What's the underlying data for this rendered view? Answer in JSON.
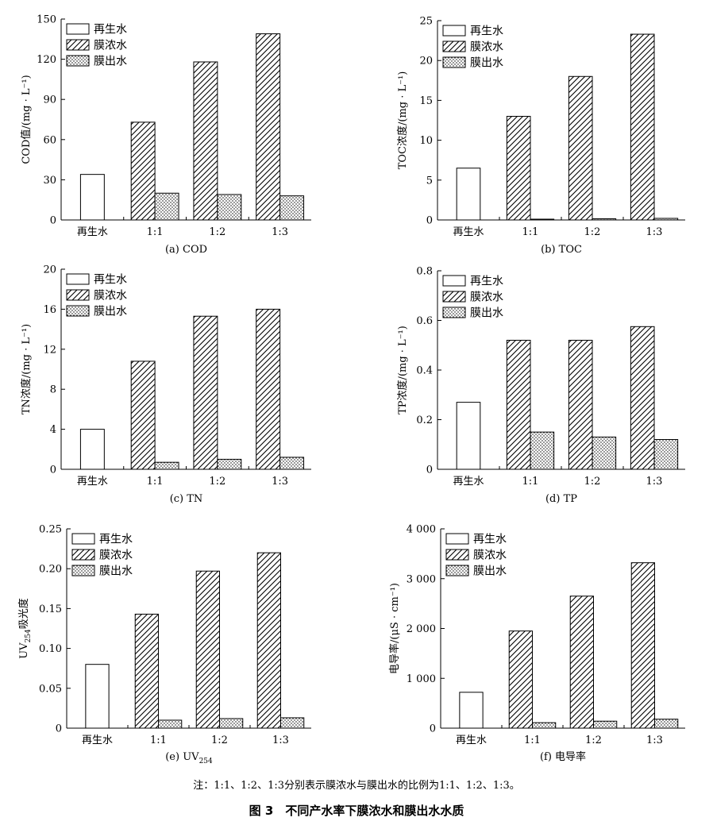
{
  "figure": {
    "note": "注：1:1、1:2、1:3分别表示膜浓水与膜出水的比例为1:1、1:2、1:3。",
    "caption": "图 3　不同产水率下膜浓水和膜出水水质"
  },
  "legend": [
    "再生水",
    "膜浓水",
    "膜出水"
  ],
  "colors": {
    "stroke": "#000000",
    "bar_fill": "#ffffff",
    "background": "#ffffff"
  },
  "chart_data": [
    {
      "id": "a",
      "type": "bar",
      "subtitle": "(a) COD",
      "ylabel": "COD值/(mg · L⁻¹)",
      "ylim": [
        0,
        150
      ],
      "yticks": [
        0,
        30,
        60,
        90,
        120,
        150
      ],
      "ytick_labels": [
        "0",
        "30",
        "60",
        "90",
        "120",
        "150"
      ],
      "categories": [
        "再生水",
        "1:1",
        "1:2",
        "1:3"
      ],
      "series": [
        {
          "name": "再生水",
          "values": [
            34,
            null,
            null,
            null
          ]
        },
        {
          "name": "膜浓水",
          "values": [
            null,
            73,
            118,
            139
          ]
        },
        {
          "name": "膜出水",
          "values": [
            null,
            20,
            19,
            18
          ]
        }
      ]
    },
    {
      "id": "b",
      "type": "bar",
      "subtitle": "(b) TOC",
      "ylabel": "TOC浓度/(mg · L⁻¹)",
      "ylim": [
        0,
        25
      ],
      "yticks": [
        0,
        5,
        10,
        15,
        20,
        25
      ],
      "ytick_labels": [
        "0",
        "5",
        "10",
        "15",
        "20",
        "25"
      ],
      "categories": [
        "再生水",
        "1:1",
        "1:2",
        "1:3"
      ],
      "series": [
        {
          "name": "再生水",
          "values": [
            6.5,
            null,
            null,
            null
          ]
        },
        {
          "name": "膜浓水",
          "values": [
            null,
            13,
            18,
            23.3
          ]
        },
        {
          "name": "膜出水",
          "values": [
            null,
            0.1,
            0.15,
            0.2
          ]
        }
      ]
    },
    {
      "id": "c",
      "type": "bar",
      "subtitle": "(c) TN",
      "ylabel": "TN浓度/(mg · L⁻¹)",
      "ylim": [
        0,
        20
      ],
      "yticks": [
        0,
        4,
        8,
        12,
        16,
        20
      ],
      "ytick_labels": [
        "0",
        "4",
        "8",
        "12",
        "16",
        "20"
      ],
      "categories": [
        "再生水",
        "1:1",
        "1:2",
        "1:3"
      ],
      "series": [
        {
          "name": "再生水",
          "values": [
            4.0,
            null,
            null,
            null
          ]
        },
        {
          "name": "膜浓水",
          "values": [
            null,
            10.8,
            15.3,
            16.0
          ]
        },
        {
          "name": "膜出水",
          "values": [
            null,
            0.7,
            1.0,
            1.2
          ]
        }
      ]
    },
    {
      "id": "d",
      "type": "bar",
      "subtitle": "(d) TP",
      "ylabel": "TP浓度/(mg · L⁻¹)",
      "ylim": [
        0,
        0.8
      ],
      "yticks": [
        0,
        0.2,
        0.4,
        0.6,
        0.8
      ],
      "ytick_labels": [
        "0",
        "0.2",
        "0.4",
        "0.6",
        "0.8"
      ],
      "categories": [
        "再生水",
        "1:1",
        "1:2",
        "1:3"
      ],
      "series": [
        {
          "name": "再生水",
          "values": [
            0.27,
            null,
            null,
            null
          ]
        },
        {
          "name": "膜浓水",
          "values": [
            null,
            0.52,
            0.52,
            0.575
          ]
        },
        {
          "name": "膜出水",
          "values": [
            null,
            0.15,
            0.13,
            0.12
          ]
        }
      ]
    },
    {
      "id": "e",
      "type": "bar",
      "subtitle": "(e) UV254",
      "subtitle_main": "(e) UV",
      "subtitle_sub": "254",
      "ylabel": "UV254吸光度",
      "ylabel_main": "UV",
      "ylabel_sub": "254",
      "ylabel_rest": "吸光度",
      "ylim": [
        0,
        0.25
      ],
      "yticks": [
        0,
        0.05,
        0.1,
        0.15,
        0.2,
        0.25
      ],
      "ytick_labels": [
        "0",
        "0.05",
        "0.10",
        "0.15",
        "0.20",
        "0.25"
      ],
      "categories": [
        "再生水",
        "1:1",
        "1:2",
        "1:3"
      ],
      "series": [
        {
          "name": "再生水",
          "values": [
            0.08,
            null,
            null,
            null
          ]
        },
        {
          "name": "膜浓水",
          "values": [
            null,
            0.143,
            0.197,
            0.22
          ]
        },
        {
          "name": "膜出水",
          "values": [
            null,
            0.01,
            0.012,
            0.013
          ]
        }
      ]
    },
    {
      "id": "f",
      "type": "bar",
      "subtitle": "(f) 电导率",
      "ylabel": "电导率/(μS · cm⁻¹)",
      "ylim": [
        0,
        4000
      ],
      "yticks": [
        0,
        1000,
        2000,
        3000,
        4000
      ],
      "ytick_labels": [
        "0",
        "1 000",
        "2 000",
        "3 000",
        "4 000"
      ],
      "categories": [
        "再生水",
        "1:1",
        "1:2",
        "1:3"
      ],
      "series": [
        {
          "name": "再生水",
          "values": [
            720,
            null,
            null,
            null
          ]
        },
        {
          "name": "膜浓水",
          "values": [
            null,
            1950,
            2650,
            3320
          ]
        },
        {
          "name": "膜出水",
          "values": [
            null,
            110,
            140,
            180
          ]
        }
      ]
    }
  ]
}
